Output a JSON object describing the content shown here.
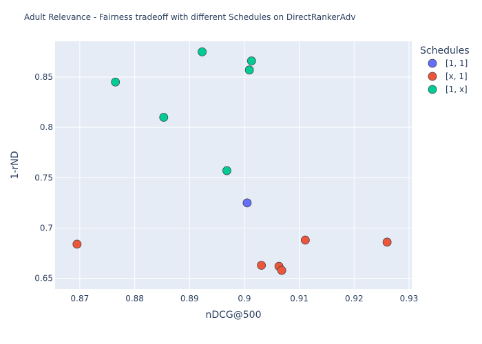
{
  "chart_data": {
    "type": "scatter",
    "title": "Adult Relevance - Fairness tradeoff with different Schedules on DirectRankerAdv",
    "xlabel": "nDCG@500",
    "ylabel": "1-rND",
    "xlim": [
      0.8655,
      0.9305
    ],
    "ylim": [
      0.6395,
      0.8855
    ],
    "grid": true,
    "xticks": [
      0.87,
      0.88,
      0.89,
      0.9,
      0.91,
      0.92,
      0.93
    ],
    "xtick_labels": [
      "0.87",
      "0.88",
      "0.89",
      "0.9",
      "0.91",
      "0.92",
      "0.93"
    ],
    "yticks": [
      0.65,
      0.7,
      0.75,
      0.8,
      0.85
    ],
    "ytick_labels": [
      "0.65",
      "0.7",
      "0.75",
      "0.8",
      "0.85"
    ],
    "legend": {
      "title": "Schedules",
      "placement": "right"
    },
    "series": [
      {
        "name": "[1, 1]",
        "color": "#636efa",
        "points": [
          [
            0.9005,
            0.725
          ]
        ]
      },
      {
        "name": "[x, 1]",
        "color": "#ef553b",
        "points": [
          [
            0.8695,
            0.684
          ],
          [
            0.9031,
            0.663
          ],
          [
            0.9063,
            0.662
          ],
          [
            0.9068,
            0.658
          ],
          [
            0.9111,
            0.688
          ],
          [
            0.926,
            0.686
          ]
        ]
      },
      {
        "name": "[1, x]",
        "color": "#00cc96",
        "points": [
          [
            0.8765,
            0.845
          ],
          [
            0.8853,
            0.81
          ],
          [
            0.8923,
            0.875
          ],
          [
            0.8968,
            0.757
          ],
          [
            0.9009,
            0.857
          ],
          [
            0.9013,
            0.866
          ]
        ]
      }
    ]
  }
}
